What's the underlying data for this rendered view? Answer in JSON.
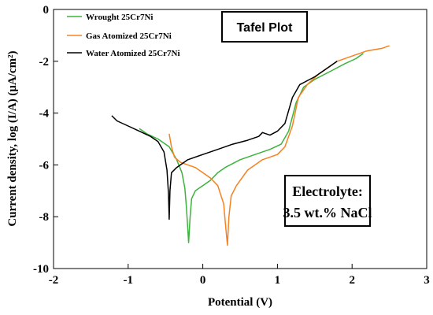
{
  "chart_data": {
    "type": "line",
    "title": "Tafel Plot",
    "annotation_lines": [
      "Electrolyte:",
      "3.5 wt.% NaCl"
    ],
    "xlabel": "Potential (V)",
    "ylabel": "Current density, log (I/A) (μA/cm²)",
    "xlim": [
      -2,
      3
    ],
    "ylim": [
      -10,
      0
    ],
    "xticks": [
      "-2",
      "-1",
      "0",
      "1",
      "2",
      "3"
    ],
    "yticks": [
      "0",
      "-2",
      "-4",
      "-6",
      "-8",
      "-10"
    ],
    "grid": false,
    "legend_position": "top-left",
    "series": [
      {
        "name": "Wrought 25Cr7Ni",
        "color": "#3cb33c",
        "points": [
          [
            -0.85,
            -4.6
          ],
          [
            -0.75,
            -4.8
          ],
          [
            -0.6,
            -5.0
          ],
          [
            -0.45,
            -5.3
          ],
          [
            -0.35,
            -5.8
          ],
          [
            -0.28,
            -6.3
          ],
          [
            -0.24,
            -6.9
          ],
          [
            -0.22,
            -7.6
          ],
          [
            -0.2,
            -8.5
          ],
          [
            -0.19,
            -9.0
          ],
          [
            -0.17,
            -8.0
          ],
          [
            -0.15,
            -7.3
          ],
          [
            -0.1,
            -7.0
          ],
          [
            0.0,
            -6.8
          ],
          [
            0.1,
            -6.6
          ],
          [
            0.2,
            -6.3
          ],
          [
            0.3,
            -6.1
          ],
          [
            0.5,
            -5.8
          ],
          [
            0.7,
            -5.6
          ],
          [
            0.9,
            -5.4
          ],
          [
            1.05,
            -5.2
          ],
          [
            1.15,
            -4.7
          ],
          [
            1.25,
            -3.6
          ],
          [
            1.35,
            -3.0
          ],
          [
            1.5,
            -2.7
          ],
          [
            1.7,
            -2.4
          ],
          [
            1.9,
            -2.1
          ],
          [
            2.05,
            -1.9
          ],
          [
            2.15,
            -1.7
          ]
        ]
      },
      {
        "name": "Gas Atomized 25Cr7Ni",
        "color": "#f58220",
        "points": [
          [
            -0.45,
            -4.8
          ],
          [
            -0.42,
            -5.3
          ],
          [
            -0.38,
            -5.7
          ],
          [
            -0.3,
            -5.9
          ],
          [
            -0.2,
            -6.0
          ],
          [
            -0.1,
            -6.1
          ],
          [
            0.0,
            -6.3
          ],
          [
            0.1,
            -6.5
          ],
          [
            0.2,
            -6.8
          ],
          [
            0.28,
            -7.5
          ],
          [
            0.31,
            -8.5
          ],
          [
            0.33,
            -9.1
          ],
          [
            0.35,
            -8.0
          ],
          [
            0.38,
            -7.2
          ],
          [
            0.45,
            -6.8
          ],
          [
            0.6,
            -6.2
          ],
          [
            0.8,
            -5.8
          ],
          [
            1.0,
            -5.6
          ],
          [
            1.1,
            -5.3
          ],
          [
            1.2,
            -4.5
          ],
          [
            1.28,
            -3.4
          ],
          [
            1.4,
            -2.9
          ],
          [
            1.55,
            -2.5
          ],
          [
            1.8,
            -2.0
          ],
          [
            2.0,
            -1.8
          ],
          [
            2.2,
            -1.6
          ],
          [
            2.4,
            -1.5
          ],
          [
            2.5,
            -1.4
          ]
        ]
      },
      {
        "name": "Water Atomized 25Cr7Ni",
        "color": "#000000",
        "points": [
          [
            -1.22,
            -4.1
          ],
          [
            -1.15,
            -4.3
          ],
          [
            -1.0,
            -4.5
          ],
          [
            -0.85,
            -4.7
          ],
          [
            -0.7,
            -4.9
          ],
          [
            -0.6,
            -5.1
          ],
          [
            -0.52,
            -5.5
          ],
          [
            -0.48,
            -6.2
          ],
          [
            -0.46,
            -7.1
          ],
          [
            -0.45,
            -8.1
          ],
          [
            -0.44,
            -7.0
          ],
          [
            -0.42,
            -6.3
          ],
          [
            -0.35,
            -6.1
          ],
          [
            -0.2,
            -5.8
          ],
          [
            0.0,
            -5.6
          ],
          [
            0.2,
            -5.4
          ],
          [
            0.4,
            -5.2
          ],
          [
            0.6,
            -5.05
          ],
          [
            0.75,
            -4.9
          ],
          [
            0.8,
            -4.75
          ],
          [
            0.9,
            -4.85
          ],
          [
            1.0,
            -4.7
          ],
          [
            1.1,
            -4.4
          ],
          [
            1.2,
            -3.4
          ],
          [
            1.3,
            -2.9
          ],
          [
            1.5,
            -2.6
          ],
          [
            1.7,
            -2.2
          ],
          [
            1.8,
            -2.0
          ]
        ]
      }
    ]
  }
}
